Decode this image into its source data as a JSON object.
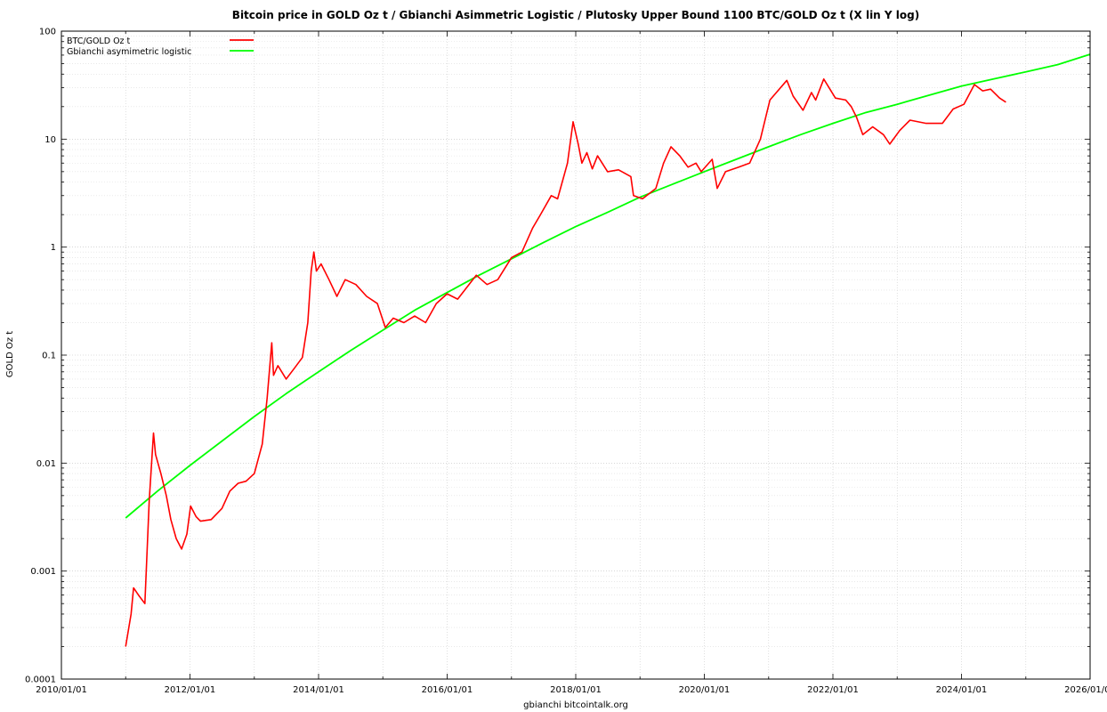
{
  "chart_data": {
    "type": "line",
    "title": "Bitcoin price in GOLD Oz t / Gbianchi Asimmetric Logistic / Plutosky Upper Bound 1100 BTC/GOLD Oz t (X lin Y log)",
    "xlabel": "gbianchi bitcointalk.org",
    "ylabel": "GOLD Oz t",
    "y_scale": "log",
    "xlim": [
      "2010/01/01",
      "2026/01/01"
    ],
    "ylim": [
      0.0001,
      100
    ],
    "x_ticks": [
      "2010/01/01",
      "2012/01/01",
      "2014/01/01",
      "2016/01/01",
      "2018/01/01",
      "2020/01/01",
      "2022/01/01",
      "2024/01/01",
      "2026/01/01"
    ],
    "y_ticks": [
      "0.0001",
      "0.001",
      "0.01",
      "0.1",
      "1",
      "10",
      "100"
    ],
    "grid": true,
    "legend_position": "top-left",
    "series": [
      {
        "name": "BTC/GOLD Oz t",
        "color": "#ff0000",
        "points": [
          [
            "2011/01/01",
            0.0002
          ],
          [
            "2011/02/01",
            0.0004
          ],
          [
            "2011/02/15",
            0.0007
          ],
          [
            "2011/03/15",
            0.0006
          ],
          [
            "2011/04/20",
            0.0005
          ],
          [
            "2011/05/15",
            0.0045
          ],
          [
            "2011/06/08",
            0.019
          ],
          [
            "2011/06/20",
            0.012
          ],
          [
            "2011/07/20",
            0.008
          ],
          [
            "2011/08/20",
            0.005
          ],
          [
            "2011/09/15",
            0.003
          ],
          [
            "2011/10/15",
            0.002
          ],
          [
            "2011/11/15",
            0.0016
          ],
          [
            "2011/12/15",
            0.0022
          ],
          [
            "2012/01/05",
            0.004
          ],
          [
            "2012/02/05",
            0.0032
          ],
          [
            "2012/03/01",
            0.0029
          ],
          [
            "2012/05/01",
            0.003
          ],
          [
            "2012/07/01",
            0.0038
          ],
          [
            "2012/08/15",
            0.0055
          ],
          [
            "2012/10/01",
            0.0065
          ],
          [
            "2012/11/15",
            0.0068
          ],
          [
            "2013/01/01",
            0.008
          ],
          [
            "2013/02/15",
            0.015
          ],
          [
            "2013/03/15",
            0.04
          ],
          [
            "2013/04/10",
            0.13
          ],
          [
            "2013/04/20",
            0.065
          ],
          [
            "2013/05/15",
            0.08
          ],
          [
            "2013/07/01",
            0.06
          ],
          [
            "2013/08/15",
            0.075
          ],
          [
            "2013/10/01",
            0.095
          ],
          [
            "2013/11/01",
            0.2
          ],
          [
            "2013/11/20",
            0.6
          ],
          [
            "2013/12/05",
            0.9
          ],
          [
            "2013/12/20",
            0.6
          ],
          [
            "2014/01/15",
            0.7
          ],
          [
            "2014/03/01",
            0.5
          ],
          [
            "2014/04/15",
            0.35
          ],
          [
            "2014/06/01",
            0.5
          ],
          [
            "2014/08/01",
            0.45
          ],
          [
            "2014/10/01",
            0.35
          ],
          [
            "2014/12/01",
            0.3
          ],
          [
            "2015/01/15",
            0.18
          ],
          [
            "2015/03/01",
            0.22
          ],
          [
            "2015/05/01",
            0.2
          ],
          [
            "2015/07/01",
            0.23
          ],
          [
            "2015/09/01",
            0.2
          ],
          [
            "2015/11/01",
            0.3
          ],
          [
            "2016/01/01",
            0.37
          ],
          [
            "2016/03/01",
            0.33
          ],
          [
            "2016/06/15",
            0.55
          ],
          [
            "2016/08/15",
            0.45
          ],
          [
            "2016/10/15",
            0.5
          ],
          [
            "2017/01/01",
            0.8
          ],
          [
            "2017/03/01",
            0.9
          ],
          [
            "2017/05/01",
            1.5
          ],
          [
            "2017/06/15",
            2.0
          ],
          [
            "2017/08/15",
            3.0
          ],
          [
            "2017/09/20",
            2.8
          ],
          [
            "2017/11/15",
            6.0
          ],
          [
            "2017/12/17",
            14.5
          ],
          [
            "2018/01/15",
            9.0
          ],
          [
            "2018/02/05",
            6.0
          ],
          [
            "2018/03/05",
            7.5
          ],
          [
            "2018/04/05",
            5.3
          ],
          [
            "2018/05/05",
            7.0
          ],
          [
            "2018/07/01",
            5.0
          ],
          [
            "2018/09/01",
            5.2
          ],
          [
            "2018/11/10",
            4.5
          ],
          [
            "2018/11/25",
            3.0
          ],
          [
            "2019/01/15",
            2.8
          ],
          [
            "2019/04/01",
            3.5
          ],
          [
            "2019/05/15",
            6.0
          ],
          [
            "2019/06/26",
            8.5
          ],
          [
            "2019/08/15",
            7.0
          ],
          [
            "2019/10/01",
            5.5
          ],
          [
            "2019/11/15",
            6.0
          ],
          [
            "2019/12/15",
            5.0
          ],
          [
            "2020/02/15",
            6.5
          ],
          [
            "2020/03/15",
            3.5
          ],
          [
            "2020/05/01",
            5.0
          ],
          [
            "2020/07/15",
            5.5
          ],
          [
            "2020/09/15",
            6.0
          ],
          [
            "2020/11/15",
            10.0
          ],
          [
            "2021/01/08",
            23.0
          ],
          [
            "2021/04/14",
            35.0
          ],
          [
            "2021/05/20",
            25.0
          ],
          [
            "2021/07/15",
            18.5
          ],
          [
            "2021/09/01",
            27.0
          ],
          [
            "2021/09/25",
            23.0
          ],
          [
            "2021/11/10",
            36.0
          ],
          [
            "2022/01/15",
            24.0
          ],
          [
            "2022/03/15",
            23.0
          ],
          [
            "2022/04/15",
            20.0
          ],
          [
            "2022/05/15",
            16.0
          ],
          [
            "2022/06/20",
            11.0
          ],
          [
            "2022/08/15",
            13.0
          ],
          [
            "2022/10/15",
            11.0
          ],
          [
            "2022/11/20",
            9.0
          ],
          [
            "2023/01/15",
            12.0
          ],
          [
            "2023/03/15",
            15.0
          ],
          [
            "2023/06/15",
            14.0
          ],
          [
            "2023/09/15",
            14.0
          ],
          [
            "2023/11/15",
            19.0
          ],
          [
            "2024/01/15",
            21.0
          ],
          [
            "2024/03/15",
            32.0
          ],
          [
            "2024/05/01",
            28.0
          ],
          [
            "2024/06/15",
            29.0
          ],
          [
            "2024/08/05",
            24.0
          ],
          [
            "2024/09/10",
            22.0
          ]
        ]
      },
      {
        "name": "Gbianchi asymimetric logistic",
        "color": "#00ff00",
        "points": [
          [
            "2011/01/01",
            0.0031
          ],
          [
            "2011/07/01",
            0.0055
          ],
          [
            "2012/01/01",
            0.0095
          ],
          [
            "2012/07/01",
            0.016
          ],
          [
            "2013/01/01",
            0.027
          ],
          [
            "2013/07/01",
            0.044
          ],
          [
            "2014/01/01",
            0.07
          ],
          [
            "2014/07/01",
            0.11
          ],
          [
            "2015/01/01",
            0.17
          ],
          [
            "2015/07/01",
            0.26
          ],
          [
            "2016/01/01",
            0.38
          ],
          [
            "2016/07/01",
            0.55
          ],
          [
            "2017/01/01",
            0.78
          ],
          [
            "2017/07/01",
            1.1
          ],
          [
            "2018/01/01",
            1.55
          ],
          [
            "2018/07/01",
            2.1
          ],
          [
            "2019/01/01",
            2.9
          ],
          [
            "2019/07/01",
            3.8
          ],
          [
            "2020/01/01",
            5.0
          ],
          [
            "2020/07/01",
            6.5
          ],
          [
            "2021/01/01",
            8.5
          ],
          [
            "2021/07/01",
            11.0
          ],
          [
            "2022/01/01",
            14.0
          ],
          [
            "2022/07/01",
            17.5
          ],
          [
            "2023/01/01",
            21.0
          ],
          [
            "2023/07/01",
            25.5
          ],
          [
            "2024/01/01",
            31.0
          ],
          [
            "2024/07/01",
            36.0
          ],
          [
            "2025/01/01",
            42.0
          ],
          [
            "2025/07/01",
            49.0
          ],
          [
            "2026/01/01",
            61.0
          ]
        ]
      }
    ]
  }
}
